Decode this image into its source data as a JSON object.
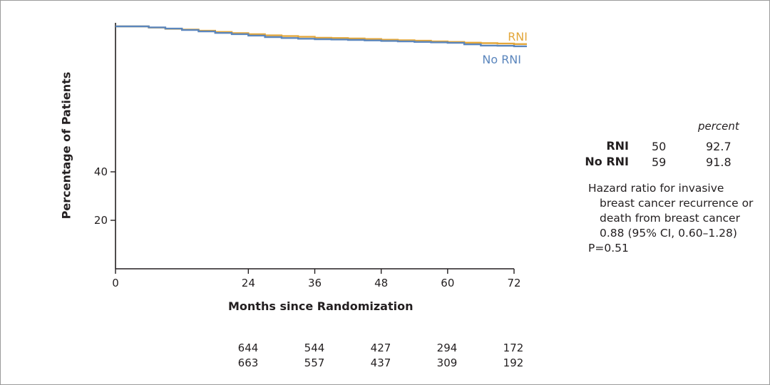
{
  "chart_data": {
    "type": "line",
    "xlabel": "Months since Randomization",
    "ylabel": "Percentage of Patients",
    "x_ticks": [
      0,
      24,
      36,
      48,
      60,
      72
    ],
    "y_ticks": [
      20,
      40
    ],
    "xlim": [
      0,
      72
    ],
    "ylim": [
      0,
      100
    ],
    "grid": false,
    "series": [
      {
        "name": "RNI",
        "color": "#e3a73b",
        "x": [
          0,
          3,
          6,
          9,
          12,
          15,
          18,
          21,
          24,
          27,
          30,
          33,
          36,
          39,
          42,
          45,
          48,
          51,
          54,
          57,
          60,
          63,
          66,
          69,
          72
        ],
        "y": [
          100,
          100,
          99.5,
          99,
          98.7,
          98.2,
          97.7,
          97.2,
          96.8,
          96.3,
          96,
          95.7,
          95.3,
          95.2,
          95,
          94.8,
          94.5,
          94.3,
          94.1,
          93.8,
          93.6,
          93.3,
          93.1,
          92.9,
          92.7
        ]
      },
      {
        "name": "No RNI",
        "color": "#5b86bd",
        "x": [
          0,
          3,
          6,
          9,
          12,
          15,
          18,
          21,
          24,
          27,
          30,
          33,
          36,
          39,
          42,
          45,
          48,
          51,
          54,
          57,
          60,
          63,
          66,
          69,
          72
        ],
        "y": [
          100,
          100,
          99.6,
          99.1,
          98.5,
          97.9,
          97.3,
          96.8,
          96.2,
          95.6,
          95.2,
          94.9,
          94.7,
          94.6,
          94.4,
          94.2,
          94,
          93.8,
          93.6,
          93.4,
          93.2,
          92.6,
          92.1,
          92,
          91.8
        ]
      }
    ]
  },
  "legend": {
    "rni": "RNI",
    "no_rni": "No RNI"
  },
  "at_risk": {
    "rni": [
      "644",
      "544",
      "427",
      "294",
      "172"
    ],
    "no_rni": [
      "663",
      "557",
      "437",
      "309",
      "192"
    ]
  },
  "summary_table": {
    "header": "percent",
    "rows": [
      {
        "group": "RNI",
        "events": "50",
        "percent": "92.7"
      },
      {
        "group": "No RNI",
        "events": "59",
        "percent": "91.8"
      }
    ]
  },
  "hazard_note": {
    "line1": "Hazard ratio for invasive",
    "line2": "breast cancer recurrence or",
    "line3": "death from breast cancer",
    "line4": "0.88 (95% CI, 0.60–1.28)",
    "pvalue": "P=0.51"
  }
}
